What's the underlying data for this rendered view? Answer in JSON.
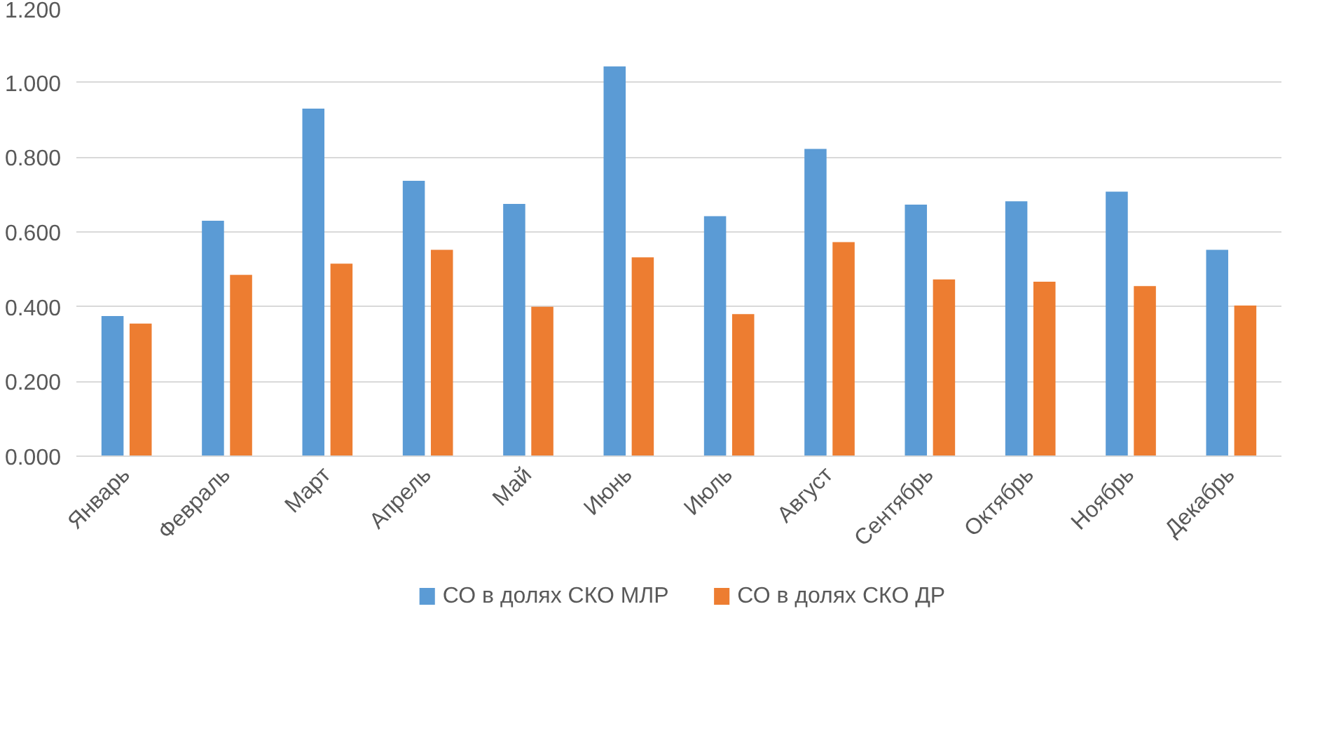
{
  "chart_data": {
    "type": "bar",
    "categories": [
      "Январь",
      "Февраль",
      "Март",
      "Апрель",
      "Май",
      "Июнь",
      "Июль",
      "Август",
      "Сентябрь",
      "Октябрь",
      "Ноябрь",
      "Декабрь"
    ],
    "series": [
      {
        "name": "СО в долях СКО МЛР",
        "color": "#5b9bd5",
        "values": [
          0.375,
          0.63,
          0.93,
          0.737,
          0.675,
          1.043,
          0.642,
          0.822,
          0.673,
          0.682,
          0.708,
          0.552
        ]
      },
      {
        "name": "СО в долях СКО ДР",
        "color": "#ed7d31",
        "values": [
          0.355,
          0.485,
          0.515,
          0.552,
          0.4,
          0.532,
          0.38,
          0.573,
          0.473,
          0.467,
          0.455,
          0.403
        ]
      }
    ],
    "ylim": [
      0,
      1.2
    ],
    "yticks": [
      {
        "value": 0,
        "label": "0.000"
      },
      {
        "value": 0.2,
        "label": "0.200"
      },
      {
        "value": 0.4,
        "label": "0.400"
      },
      {
        "value": 0.6,
        "label": "0.600"
      },
      {
        "value": 0.8,
        "label": "0.800"
      },
      {
        "value": 1.0,
        "label": "1.000"
      },
      {
        "value": 1.2,
        "label": "1.200"
      }
    ],
    "grid": "y",
    "legend": "bottom"
  }
}
